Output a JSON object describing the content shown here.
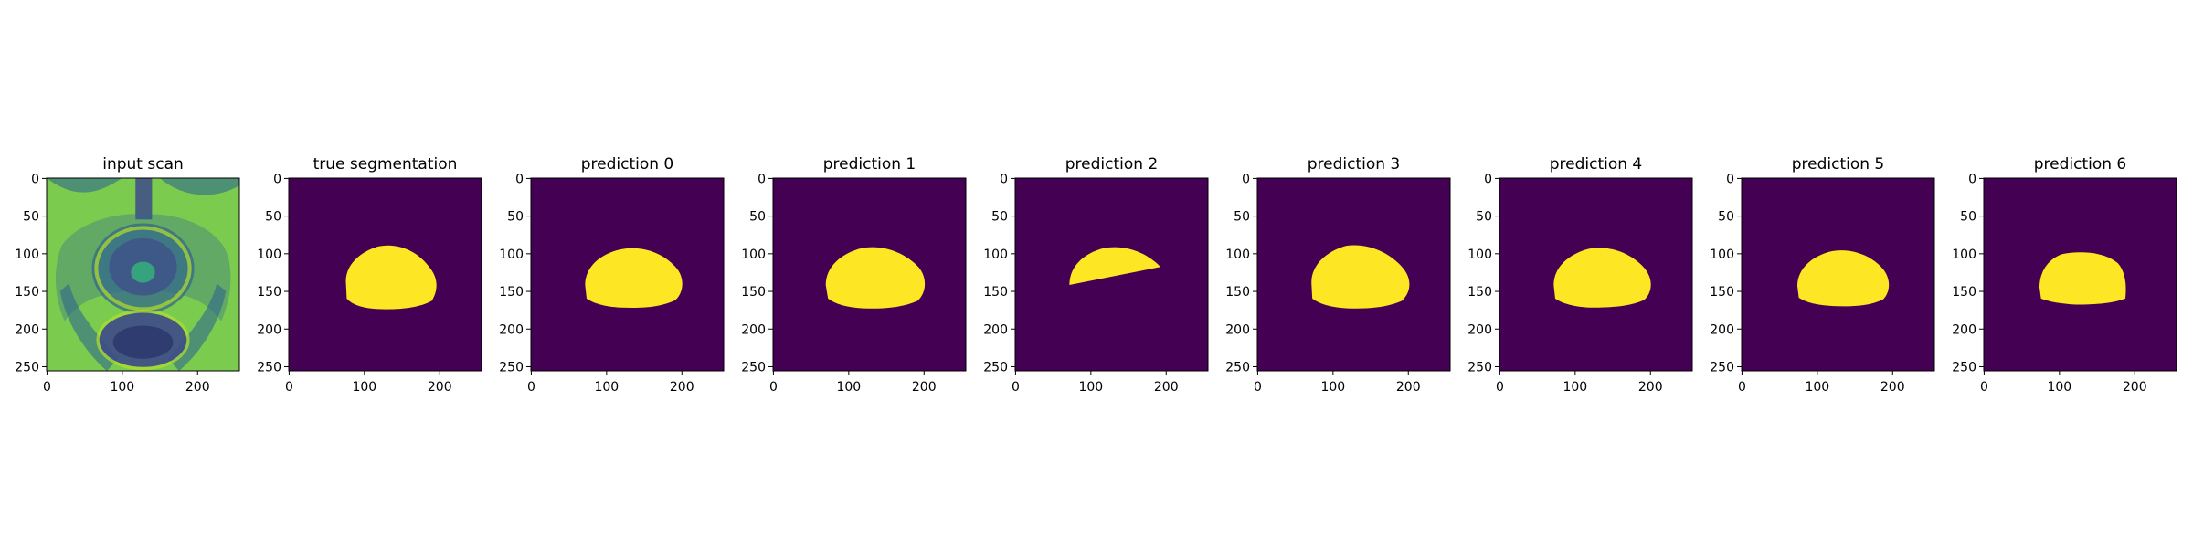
{
  "figure": {
    "panels": [
      {
        "title": "input scan",
        "kind": "scan"
      },
      {
        "title": "true segmentation",
        "kind": "mask"
      },
      {
        "title": "prediction 0",
        "kind": "mask"
      },
      {
        "title": "prediction 1",
        "kind": "mask"
      },
      {
        "title": "prediction 2",
        "kind": "mask"
      },
      {
        "title": "prediction 3",
        "kind": "mask"
      },
      {
        "title": "prediction 4",
        "kind": "mask"
      },
      {
        "title": "prediction 5",
        "kind": "mask"
      },
      {
        "title": "prediction 6",
        "kind": "mask"
      }
    ],
    "x_ticks": [
      "0",
      "100",
      "200"
    ],
    "x_tick_values": [
      0,
      100,
      200
    ],
    "y_ticks": [
      "0",
      "50",
      "100",
      "150",
      "200",
      "250"
    ],
    "y_tick_values": [
      0,
      50,
      100,
      150,
      200,
      250
    ],
    "image_extent": [
      0,
      256
    ],
    "colors": {
      "background": "#440154",
      "mask": "#fde725",
      "scan_light": "#b5de2b",
      "scan_mid": "#35b779",
      "scan_dark": "#31688e",
      "scan_deep": "#3e4a89"
    }
  }
}
